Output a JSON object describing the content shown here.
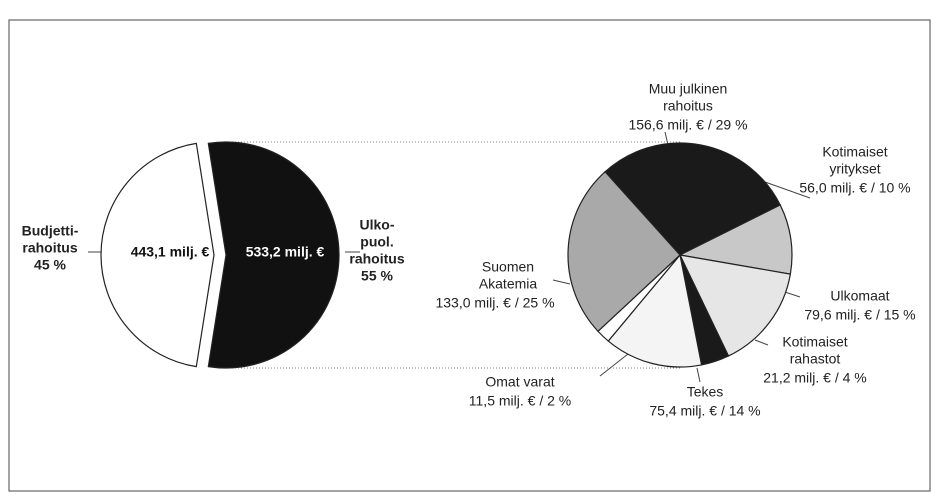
{
  "chart_data": [
    {
      "type": "pie",
      "categories": [
        [
          "Budjetti-",
          "rahoitus"
        ],
        [
          "Ulko-",
          "puol.",
          "rahoitus"
        ]
      ],
      "values": [
        45,
        55
      ],
      "value_labels": [
        "45 %",
        "55 %"
      ],
      "amount_labels": [
        "443,1 milj. €",
        "533,2 milj. €"
      ],
      "colors": [
        "#ffffff",
        "#111111"
      ],
      "startangle": 189
    },
    {
      "type": "pie",
      "categories": [
        [
          "Muu julkinen",
          "rahoitus"
        ],
        [
          "Kotimaiset",
          "yritykset"
        ],
        [
          "Ulkomaat"
        ],
        [
          "Kotimaiset",
          "rahastot"
        ],
        [
          "Tekes"
        ],
        [
          "Omat varat"
        ],
        [
          "Suomen",
          "Akatemia"
        ]
      ],
      "values": [
        29,
        10,
        15,
        4,
        14,
        2,
        25
      ],
      "value_labels": [
        "156,6 milj. € / 29 %",
        "56,0 milj. € / 10 %",
        "79,6 milj. € / 15 %",
        "21,2 milj. € / 4 %",
        "75,4 milj. € / 14 %",
        "11,5 milj. € / 2 %",
        "133,0 milj. € / 25 %"
      ],
      "colors": [
        "#1a1a1a",
        "#c8c8c8",
        "#e6e6e6",
        "#1a1a1a",
        "#f4f4f4",
        "#ffffff",
        "#a9a9a9"
      ],
      "startangle": -42
    }
  ]
}
